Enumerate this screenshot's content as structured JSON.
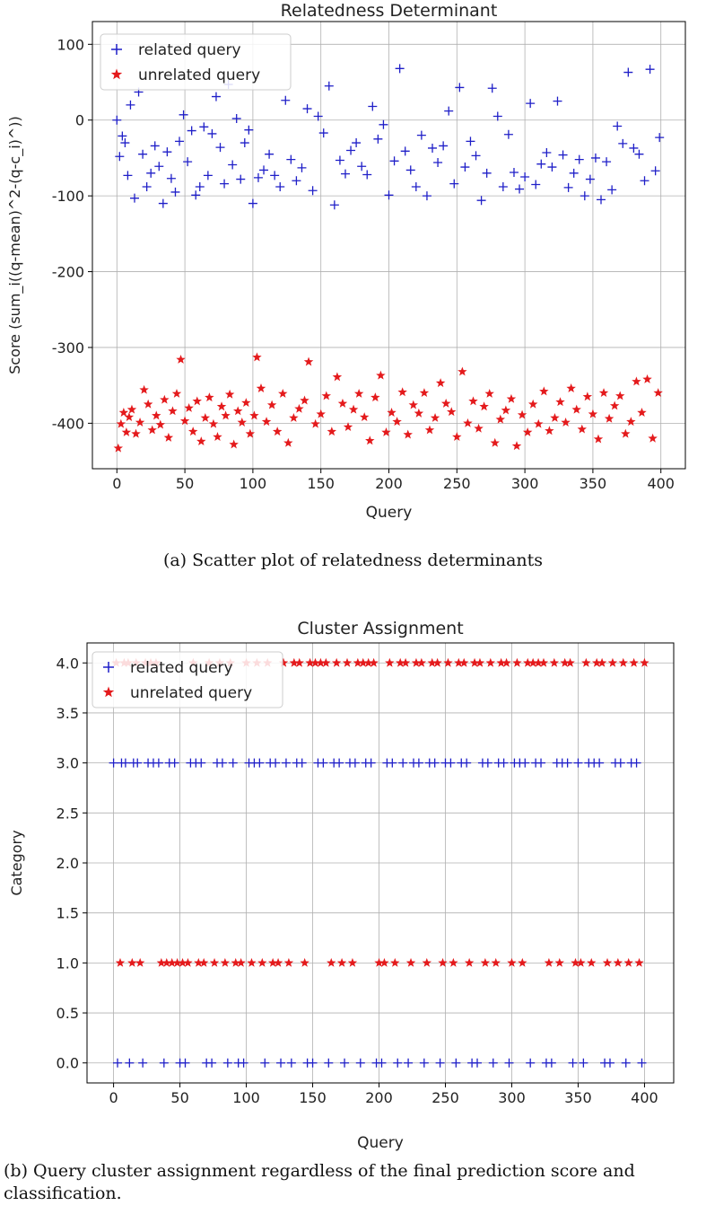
{
  "figures": [
    {
      "caption": "(a) Scatter plot of relatedness determinants",
      "chart_data": {
        "type": "scatter",
        "title": "Relatedness Determinant",
        "xlabel": "Query",
        "ylabel": "Score (sum_i((q-mean)^2-(q-c_i)^))",
        "xlim": [
          -18,
          418
        ],
        "ylim": [
          -460,
          130
        ],
        "xticks": [
          0,
          50,
          100,
          150,
          200,
          250,
          300,
          350,
          400
        ],
        "yticks": [
          100,
          0,
          -100,
          -200,
          -300,
          -400
        ],
        "grid": true,
        "legend": "top-left",
        "series": [
          {
            "name": "related query",
            "marker": "plus",
            "color": "#1f1fc8",
            "x": [
              0,
              2,
              4,
              6,
              8,
              10,
              13,
              16,
              19,
              22,
              25,
              28,
              31,
              34,
              37,
              40,
              43,
              46,
              49,
              52,
              55,
              58,
              61,
              64,
              67,
              70,
              73,
              76,
              79,
              82,
              85,
              88,
              91,
              94,
              97,
              100,
              104,
              108,
              112,
              116,
              120,
              124,
              128,
              132,
              136,
              140,
              144,
              148,
              152,
              156,
              160,
              164,
              168,
              172,
              176,
              180,
              184,
              188,
              192,
              196,
              200,
              204,
              208,
              212,
              216,
              220,
              224,
              228,
              232,
              236,
              240,
              244,
              248,
              252,
              256,
              260,
              264,
              268,
              272,
              276,
              280,
              284,
              288,
              292,
              296,
              300,
              304,
              308,
              312,
              316,
              320,
              324,
              328,
              332,
              336,
              340,
              344,
              348,
              352,
              356,
              360,
              364,
              368,
              372,
              376,
              380,
              384,
              388,
              392,
              396,
              399
            ],
            "y": [
              0,
              -48,
              -21,
              -30,
              -73,
              20,
              -103,
              37,
              -45,
              -88,
              -70,
              -34,
              -61,
              -110,
              -42,
              -77,
              -95,
              -28,
              7,
              -55,
              -14,
              -99,
              -88,
              -9,
              -73,
              -18,
              31,
              -36,
              -84,
              47,
              -59,
              2,
              -78,
              -30,
              -13,
              -110,
              -76,
              -66,
              -45,
              -73,
              -88,
              26,
              -52,
              -80,
              -63,
              15,
              -93,
              5,
              -17,
              45,
              -112,
              -53,
              -71,
              -40,
              -30,
              -61,
              -72,
              18,
              -25,
              -6,
              -99,
              -54,
              68,
              -41,
              -66,
              -88,
              -20,
              -100,
              -37,
              -56,
              -34,
              12,
              -84,
              43,
              -62,
              -28,
              -47,
              -106,
              -70,
              42,
              5,
              -88,
              -19,
              -69,
              -91,
              -75,
              22,
              -85,
              -58,
              -43,
              -62,
              25,
              -46,
              -89,
              -70,
              -52,
              -100,
              -78,
              -50,
              -105,
              -55,
              -92,
              -8,
              -31,
              63,
              -37,
              -45,
              -80,
              67,
              -67,
              -23
            ]
          },
          {
            "name": "unrelated query",
            "marker": "star",
            "color": "#e41a1c",
            "x": [
              1,
              3,
              5,
              7,
              9,
              11,
              14,
              17,
              20,
              23,
              26,
              29,
              32,
              35,
              38,
              41,
              44,
              47,
              50,
              53,
              56,
              59,
              62,
              65,
              68,
              71,
              74,
              77,
              80,
              83,
              86,
              89,
              92,
              95,
              98,
              101,
              103,
              106,
              110,
              114,
              118,
              122,
              126,
              130,
              134,
              138,
              141,
              146,
              150,
              154,
              158,
              162,
              166,
              170,
              174,
              178,
              182,
              186,
              190,
              194,
              198,
              202,
              206,
              210,
              214,
              218,
              222,
              226,
              230,
              234,
              238,
              242,
              246,
              250,
              254,
              258,
              262,
              266,
              270,
              274,
              278,
              282,
              286,
              290,
              294,
              298,
              302,
              306,
              310,
              314,
              318,
              322,
              326,
              330,
              334,
              338,
              342,
              346,
              350,
              354,
              358,
              362,
              366,
              370,
              374,
              378,
              382,
              386,
              390,
              394,
              398
            ],
            "y": [
              -433,
              -401,
              -386,
              -412,
              -392,
              -382,
              -414,
              -399,
              -356,
              -375,
              -409,
              -390,
              -402,
              -369,
              -419,
              -384,
              -361,
              -316,
              -397,
              -380,
              -411,
              -371,
              -424,
              -393,
              -366,
              -401,
              -418,
              -378,
              -390,
              -362,
              -428,
              -384,
              -399,
              -373,
              -414,
              -390,
              -313,
              -354,
              -398,
              -376,
              -411,
              -361,
              -426,
              -393,
              -381,
              -370,
              -319,
              -401,
              -388,
              -364,
              -411,
              -339,
              -374,
              -405,
              -382,
              -361,
              -392,
              -423,
              -366,
              -337,
              -412,
              -386,
              -398,
              -359,
              -415,
              -376,
              -387,
              -360,
              -409,
              -393,
              -347,
              -374,
              -385,
              -418,
              -332,
              -400,
              -371,
              -407,
              -378,
              -361,
              -426,
              -395,
              -383,
              -368,
              -430,
              -389,
              -412,
              -375,
              -401,
              -358,
              -410,
              -393,
              -372,
              -399,
              -354,
              -382,
              -408,
              -365,
              -388,
              -421,
              -360,
              -394,
              -377,
              -364,
              -414,
              -398,
              -345,
              -386,
              -342,
              -420,
              -360
            ]
          }
        ]
      }
    },
    {
      "caption": "(b) Query cluster assignment regardless of the final prediction score and classification.",
      "chart_data": {
        "type": "scatter",
        "title": "Cluster Assignment",
        "xlabel": "Query",
        "ylabel": "Category",
        "xlim": [
          -20,
          422
        ],
        "ylim": [
          -0.2,
          4.2
        ],
        "xticks": [
          0,
          50,
          100,
          150,
          200,
          250,
          300,
          350,
          400
        ],
        "yticks": [
          0.0,
          0.5,
          1.0,
          1.5,
          2.0,
          2.5,
          3.0,
          3.5,
          4.0
        ],
        "grid": true,
        "legend": "top-left",
        "series": [
          {
            "name": "related query",
            "marker": "plus",
            "color": "#1f1fc8",
            "x": [
              0,
              3,
              6,
              9,
              12,
              15,
              18,
              22,
              26,
              30,
              34,
              38,
              42,
              46,
              50,
              54,
              58,
              62,
              66,
              70,
              74,
              78,
              82,
              86,
              90,
              94,
              98,
              102,
              106,
              110,
              114,
              118,
              122,
              126,
              130,
              134,
              138,
              142,
              146,
              150,
              154,
              158,
              162,
              166,
              170,
              174,
              178,
              182,
              186,
              190,
              194,
              198,
              202,
              206,
              210,
              214,
              218,
              222,
              226,
              230,
              234,
              238,
              242,
              246,
              250,
              254,
              258,
              262,
              266,
              270,
              274,
              278,
              282,
              286,
              290,
              294,
              298,
              302,
              306,
              310,
              314,
              318,
              322,
              326,
              330,
              334,
              338,
              342,
              346,
              350,
              354,
              358,
              362,
              366,
              370,
              374,
              378,
              382,
              386,
              390,
              394,
              398
            ],
            "y": [
              3,
              0,
              3,
              3,
              0,
              3,
              3,
              0,
              3,
              3,
              3,
              0,
              3,
              3,
              0,
              0,
              3,
              3,
              3,
              0,
              0,
              3,
              3,
              0,
              3,
              0,
              0,
              3,
              3,
              3,
              0,
              3,
              3,
              0,
              3,
              0,
              3,
              3,
              0,
              0,
              3,
              3,
              0,
              3,
              3,
              0,
              3,
              3,
              0,
              3,
              3,
              0,
              0,
              3,
              3,
              0,
              3,
              0,
              3,
              3,
              0,
              3,
              3,
              0,
              3,
              3,
              0,
              3,
              3,
              0,
              0,
              3,
              3,
              0,
              3,
              3,
              0,
              3,
              3,
              3,
              0,
              3,
              3,
              0,
              0,
              3,
              3,
              3,
              0,
              3,
              0,
              3,
              3,
              3,
              0,
              0,
              3,
              3,
              0,
              3,
              3,
              0
            ]
          },
          {
            "name": "unrelated query",
            "marker": "star",
            "color": "#e41a1c",
            "x": [
              2,
              5,
              8,
              11,
              14,
              17,
              20,
              24,
              28,
              32,
              36,
              40,
              44,
              48,
              52,
              56,
              60,
              64,
              68,
              72,
              76,
              80,
              84,
              88,
              92,
              96,
              100,
              104,
              108,
              112,
              116,
              120,
              124,
              128,
              132,
              136,
              140,
              144,
              148,
              152,
              156,
              160,
              164,
              168,
              172,
              176,
              180,
              184,
              188,
              192,
              196,
              200,
              204,
              208,
              212,
              216,
              220,
              224,
              228,
              232,
              236,
              240,
              244,
              248,
              252,
              256,
              260,
              264,
              268,
              272,
              276,
              280,
              284,
              288,
              292,
              296,
              300,
              304,
              308,
              312,
              316,
              320,
              324,
              328,
              332,
              336,
              340,
              344,
              348,
              352,
              356,
              360,
              364,
              368,
              372,
              376,
              380,
              384,
              388,
              392,
              396,
              400
            ],
            "y": [
              4,
              1,
              4,
              4,
              1,
              4,
              1,
              4,
              4,
              4,
              1,
              1,
              1,
              1,
              1,
              1,
              4,
              1,
              1,
              4,
              1,
              4,
              1,
              4,
              1,
              1,
              4,
              1,
              4,
              1,
              4,
              1,
              1,
              4,
              1,
              4,
              4,
              1,
              4,
              4,
              4,
              4,
              1,
              4,
              1,
              4,
              1,
              4,
              4,
              4,
              4,
              1,
              1,
              4,
              1,
              4,
              4,
              1,
              4,
              4,
              1,
              4,
              4,
              1,
              4,
              1,
              4,
              4,
              1,
              4,
              4,
              1,
              4,
              1,
              4,
              4,
              1,
              4,
              1,
              4,
              4,
              4,
              4,
              1,
              4,
              1,
              4,
              4,
              1,
              1,
              4,
              1,
              4,
              4,
              1,
              4,
              1,
              4,
              1,
              4,
              1,
              4
            ]
          }
        ]
      }
    }
  ]
}
